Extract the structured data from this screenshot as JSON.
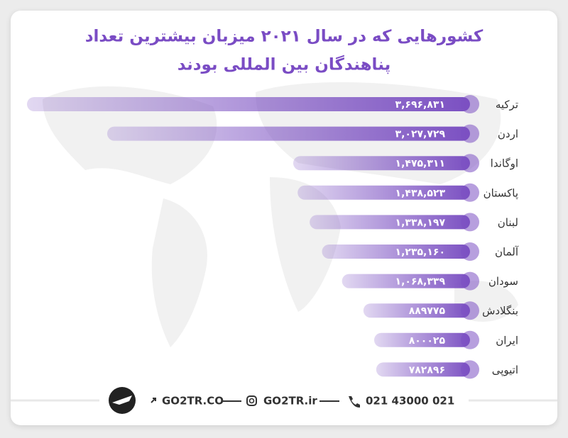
{
  "chart_data": {
    "type": "bar",
    "title": [
      "کشورهایی که در سال ۲۰۲۱ میزبان بیشترین تعداد",
      "پناهندگان بین المللی بودند"
    ],
    "categories": [
      "ترکیه",
      "اردن",
      "اوگاندا",
      "پاکستان",
      "لبنان",
      "آلمان",
      "سودان",
      "بنگلادش",
      "ایران",
      "اتیوپی"
    ],
    "values": [
      3696831,
      3027729,
      1475311,
      1438523,
      1338197,
      1235160,
      1068339,
      889775,
      800025,
      782896
    ],
    "value_labels": [
      "۳,۶۹۶,۸۳۱",
      "۳,۰۲۷,۷۲۹",
      "۱,۴۷۵,۳۱۱",
      "۱,۴۳۸,۵۲۳",
      "۱,۳۳۸,۱۹۷",
      "۱,۲۳۵,۱۶۰",
      "۱,۰۶۸,۳۳۹",
      "۸۸۹۷۷۵",
      "۸۰۰۰۲۵",
      "۷۸۲۸۹۶"
    ],
    "color": "#7b50c2"
  },
  "footer": {
    "website": "GO2TR.CO",
    "instagram": "GO2TR.ir",
    "phone": "021 43000 021"
  }
}
